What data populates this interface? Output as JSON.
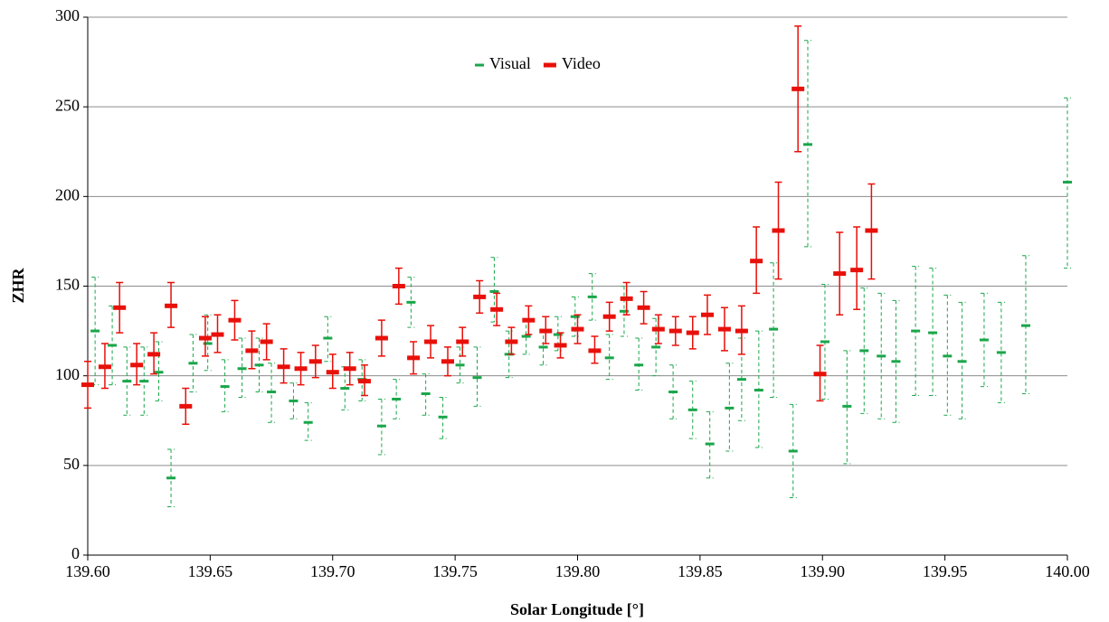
{
  "chart_data": {
    "type": "errorbar_scatter",
    "xlabel": "Solar Longitude [°]",
    "ylabel": "ZHR",
    "xlim": [
      139.6,
      140.0
    ],
    "xticks": [
      {
        "value": 139.6,
        "label": "139.60"
      },
      {
        "value": 139.65,
        "label": "139.65"
      },
      {
        "value": 139.7,
        "label": "139.70"
      },
      {
        "value": 139.75,
        "label": "139.75"
      },
      {
        "value": 139.8,
        "label": "139.80"
      },
      {
        "value": 139.85,
        "label": "139.85"
      },
      {
        "value": 139.9,
        "label": "139.90"
      },
      {
        "value": 139.95,
        "label": "139.95"
      },
      {
        "value": 140.0,
        "label": "140.00"
      }
    ],
    "ylim": [
      0,
      300
    ],
    "yticks": [
      0,
      50,
      100,
      150,
      200,
      250,
      300
    ],
    "grid": true,
    "legend": "upper center",
    "series": [
      {
        "name": "Visual",
        "color": "#1aa64a",
        "dashed": true,
        "x": [
          139.603,
          139.61,
          139.616,
          139.623,
          139.629,
          139.634,
          139.643,
          139.649,
          139.656,
          139.663,
          139.67,
          139.675,
          139.684,
          139.69,
          139.698,
          139.705,
          139.712,
          139.72,
          139.726,
          139.732,
          139.738,
          139.745,
          139.752,
          139.759,
          139.766,
          139.772,
          139.779,
          139.786,
          139.792,
          139.799,
          139.806,
          139.813,
          139.819,
          139.825,
          139.832,
          139.839,
          139.847,
          139.854,
          139.862,
          139.867,
          139.874,
          139.88,
          139.888,
          139.894,
          139.901,
          139.91,
          139.917,
          139.924,
          139.93,
          139.938,
          139.945,
          139.951,
          139.957,
          139.966,
          139.973,
          139.983,
          140.0
        ],
        "values": [
          125,
          117,
          97,
          97,
          102,
          43,
          107,
          118,
          94,
          104,
          106,
          91,
          86,
          74,
          121,
          93,
          98,
          72,
          87,
          141,
          90,
          77,
          106,
          99,
          147,
          112,
          122,
          116,
          123,
          133,
          144,
          110,
          136,
          106,
          116,
          91,
          81,
          62,
          82,
          98,
          92,
          126,
          58,
          229,
          119,
          83,
          114,
          111,
          108,
          125,
          124,
          111,
          108,
          120,
          113,
          128,
          208
        ],
        "errors_minus": [
          30,
          22,
          19,
          19,
          16,
          16,
          16,
          15,
          14,
          16,
          15,
          17,
          10,
          10,
          13,
          12,
          12,
          16,
          11,
          14,
          12,
          12,
          10,
          16,
          17,
          13,
          10,
          10,
          9,
          11,
          13,
          12,
          14,
          14,
          16,
          15,
          16,
          19,
          24,
          23,
          32,
          38,
          26,
          57,
          32,
          32,
          35,
          35,
          34,
          36,
          35,
          33,
          32,
          26,
          28,
          38,
          48
        ],
        "errors_plus": [
          30,
          22,
          19,
          19,
          17,
          16,
          16,
          16,
          15,
          17,
          15,
          16,
          10,
          11,
          12,
          12,
          11,
          15,
          11,
          14,
          11,
          11,
          10,
          17,
          19,
          13,
          10,
          10,
          10,
          11,
          13,
          13,
          14,
          15,
          16,
          15,
          16,
          18,
          25,
          23,
          33,
          37,
          26,
          58,
          32,
          31,
          35,
          35,
          34,
          36,
          36,
          34,
          33,
          26,
          28,
          39,
          47
        ]
      },
      {
        "name": "Video",
        "color": "#e8100a",
        "dashed": false,
        "x": [
          139.6,
          139.607,
          139.613,
          139.62,
          139.627,
          139.634,
          139.64,
          139.648,
          139.653,
          139.66,
          139.667,
          139.673,
          139.68,
          139.687,
          139.693,
          139.7,
          139.707,
          139.713,
          139.72,
          139.727,
          139.733,
          139.74,
          139.747,
          139.753,
          139.76,
          139.767,
          139.773,
          139.78,
          139.787,
          139.793,
          139.8,
          139.807,
          139.813,
          139.82,
          139.827,
          139.833,
          139.84,
          139.847,
          139.853,
          139.86,
          139.867,
          139.873,
          139.882,
          139.89,
          139.899,
          139.907,
          139.914,
          139.92
        ],
        "values": [
          95,
          105,
          138,
          106,
          112,
          139,
          83,
          121,
          123,
          131,
          114,
          119,
          105,
          104,
          108,
          102,
          104,
          97,
          121,
          150,
          110,
          119,
          108,
          119,
          144,
          137,
          119,
          131,
          125,
          117,
          126,
          114,
          133,
          143,
          138,
          126,
          125,
          124,
          134,
          126,
          125,
          164,
          181,
          260,
          101,
          157,
          159,
          181
        ],
        "errors_minus": [
          13,
          12,
          14,
          11,
          11,
          12,
          10,
          10,
          10,
          11,
          10,
          10,
          9,
          9,
          9,
          9,
          9,
          8,
          10,
          10,
          9,
          9,
          8,
          8,
          9,
          9,
          7,
          8,
          7,
          7,
          8,
          7,
          8,
          9,
          9,
          8,
          8,
          9,
          11,
          12,
          13,
          18,
          27,
          35,
          15,
          23,
          22,
          27
        ],
        "errors_plus": [
          13,
          13,
          14,
          12,
          12,
          13,
          10,
          12,
          11,
          11,
          11,
          10,
          10,
          9,
          9,
          10,
          9,
          9,
          10,
          10,
          9,
          9,
          8,
          8,
          9,
          9,
          8,
          8,
          8,
          7,
          8,
          8,
          8,
          9,
          9,
          8,
          8,
          9,
          11,
          12,
          14,
          19,
          27,
          35,
          16,
          23,
          24,
          26
        ]
      }
    ]
  }
}
